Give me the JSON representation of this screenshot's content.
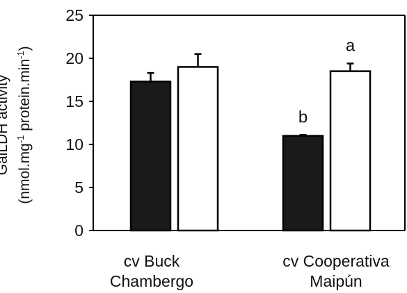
{
  "chart_data": {
    "type": "bar",
    "title": "",
    "xlabel": "",
    "ylabel": {
      "line1": "GalLDH activity",
      "line2_pre": "(nmol.mg",
      "line2_sup1": "-1",
      "line2_mid": " protein.min",
      "line2_sup2": "-1",
      "line2_post": ")"
    },
    "ylim": [
      0,
      25
    ],
    "yticks": [
      "0",
      "5",
      "10",
      "15",
      "20",
      "25"
    ],
    "categories": [
      {
        "line1": "cv Buck",
        "line2": "Chambergo"
      },
      {
        "line1": "cv Cooperativa",
        "line2": "Maipún"
      }
    ],
    "series": [
      {
        "values": [
          17.3,
          11.0
        ],
        "errors": [
          1.0,
          0.1
        ],
        "fill": "#1a1a1a",
        "letters": [
          "",
          "b"
        ]
      },
      {
        "values": [
          19.0,
          18.5
        ],
        "errors": [
          1.5,
          0.9
        ],
        "fill": "#ffffff",
        "letters": [
          "",
          "a"
        ]
      }
    ],
    "grid": false,
    "legend": "none"
  }
}
